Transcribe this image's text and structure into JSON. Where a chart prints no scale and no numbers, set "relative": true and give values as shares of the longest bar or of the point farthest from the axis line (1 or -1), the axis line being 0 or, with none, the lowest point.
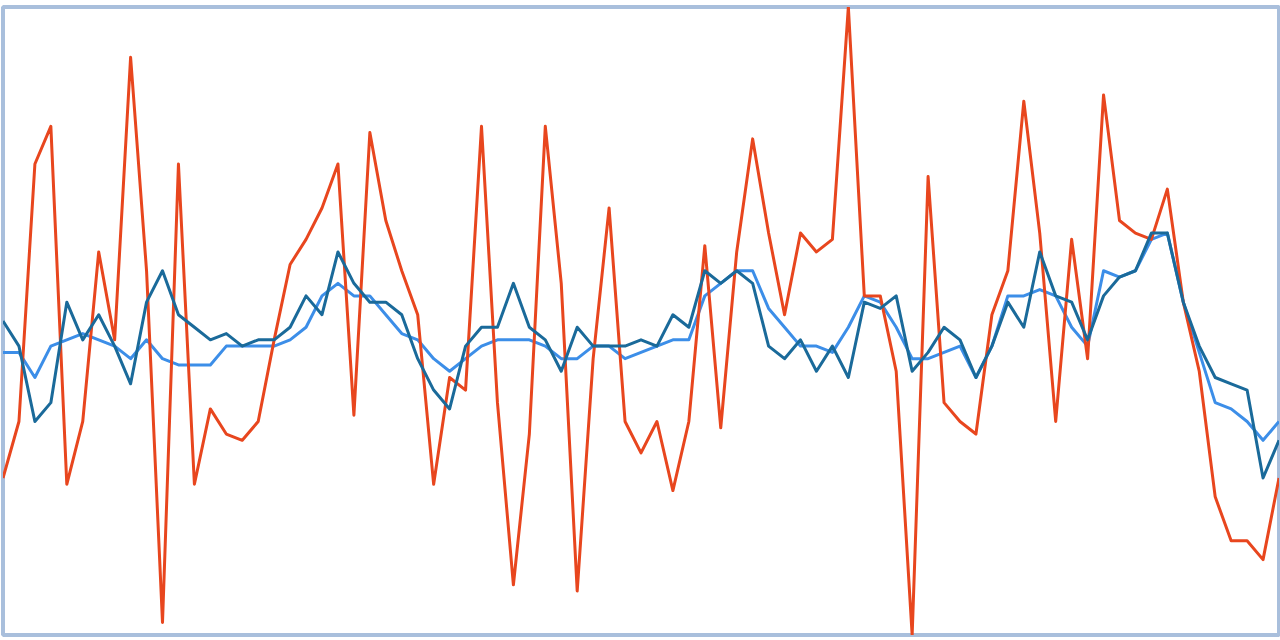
{
  "chart_data": {
    "type": "line",
    "relative": true,
    "categories": [
      null,
      null,
      null,
      null,
      null,
      null,
      null,
      null,
      null,
      null,
      null,
      null,
      null,
      null,
      null,
      null,
      null,
      null,
      null,
      null,
      null,
      null,
      null,
      null,
      null,
      null,
      null,
      null,
      null,
      null,
      null,
      null,
      null,
      null,
      null,
      null,
      null,
      null,
      null,
      null,
      null,
      null,
      null,
      null,
      null,
      null,
      null,
      null,
      null,
      null,
      null,
      null,
      null,
      null,
      null,
      null,
      null,
      null,
      null,
      null,
      null,
      null,
      null,
      null,
      null,
      null,
      null,
      null,
      null,
      null,
      null,
      null,
      null,
      null,
      null,
      null,
      null,
      null,
      null,
      null,
      null
    ],
    "series": [
      {
        "color": "#3c8ee8",
        "values": [
          0.45,
          0.45,
          0.41,
          0.46,
          0.47,
          0.48,
          0.47,
          0.46,
          0.44,
          0.47,
          0.44,
          0.43,
          0.43,
          0.43,
          0.46,
          0.46,
          0.46,
          0.46,
          0.47,
          0.49,
          0.54,
          0.56,
          0.54,
          0.54,
          0.51,
          0.48,
          0.47,
          0.44,
          0.42,
          0.44,
          0.46,
          0.47,
          0.47,
          0.47,
          0.46,
          0.44,
          0.44,
          0.46,
          0.46,
          0.44,
          0.45,
          0.46,
          0.47,
          0.47,
          0.54,
          0.56,
          0.58,
          0.58,
          0.52,
          0.49,
          0.46,
          0.46,
          0.45,
          0.49,
          0.54,
          0.53,
          0.49,
          0.44,
          0.44,
          0.45,
          0.46,
          0.41,
          0.46,
          0.54,
          0.54,
          0.55,
          0.54,
          0.49,
          0.46,
          0.58,
          0.57,
          0.58,
          0.63,
          0.64,
          0.53,
          0.45,
          0.37,
          0.36,
          0.34,
          0.31,
          0.34
        ]
      },
      {
        "color": "#e8461e",
        "values": [
          0.25,
          0.34,
          0.75,
          0.81,
          0.24,
          0.34,
          0.61,
          0.47,
          0.92,
          0.58,
          0.02,
          0.75,
          0.24,
          0.36,
          0.32,
          0.31,
          0.34,
          0.47,
          0.59,
          0.63,
          0.68,
          0.75,
          0.35,
          0.8,
          0.66,
          0.58,
          0.51,
          0.24,
          0.41,
          0.39,
          0.81,
          0.37,
          0.08,
          0.32,
          0.81,
          0.56,
          0.07,
          0.44,
          0.68,
          0.34,
          0.29,
          0.34,
          0.23,
          0.34,
          0.62,
          0.33,
          0.61,
          0.79,
          0.64,
          0.51,
          0.64,
          0.61,
          0.63,
          1,
          0.54,
          0.54,
          0.42,
          0,
          0.73,
          0.37,
          0.34,
          0.32,
          0.51,
          0.58,
          0.85,
          0.64,
          0.34,
          0.63,
          0.44,
          0.86,
          0.66,
          0.64,
          0.63,
          0.71,
          0.53,
          0.42,
          0.22,
          0.15,
          0.15,
          0.12,
          0.25
        ]
      },
      {
        "color": "#1a6a9a",
        "values": [
          0.5,
          0.46,
          0.34,
          0.37,
          0.53,
          0.47,
          0.51,
          0.46,
          0.4,
          0.53,
          0.58,
          0.51,
          0.49,
          0.47,
          0.48,
          0.46,
          0.47,
          0.47,
          0.49,
          0.54,
          0.51,
          0.61,
          0.56,
          0.53,
          0.53,
          0.51,
          0.44,
          0.39,
          0.36,
          0.46,
          0.49,
          0.49,
          0.56,
          0.49,
          0.47,
          0.42,
          0.49,
          0.46,
          0.46,
          0.46,
          0.47,
          0.46,
          0.51,
          0.49,
          0.58,
          0.56,
          0.58,
          0.56,
          0.46,
          0.44,
          0.47,
          0.42,
          0.46,
          0.41,
          0.53,
          0.52,
          0.54,
          0.42,
          0.45,
          0.49,
          0.47,
          0.41,
          0.46,
          0.53,
          0.49,
          0.61,
          0.54,
          0.53,
          0.47,
          0.54,
          0.57,
          0.58,
          0.64,
          0.64,
          0.53,
          0.46,
          0.41,
          0.4,
          0.39,
          0.25,
          0.31
        ]
      }
    ]
  }
}
